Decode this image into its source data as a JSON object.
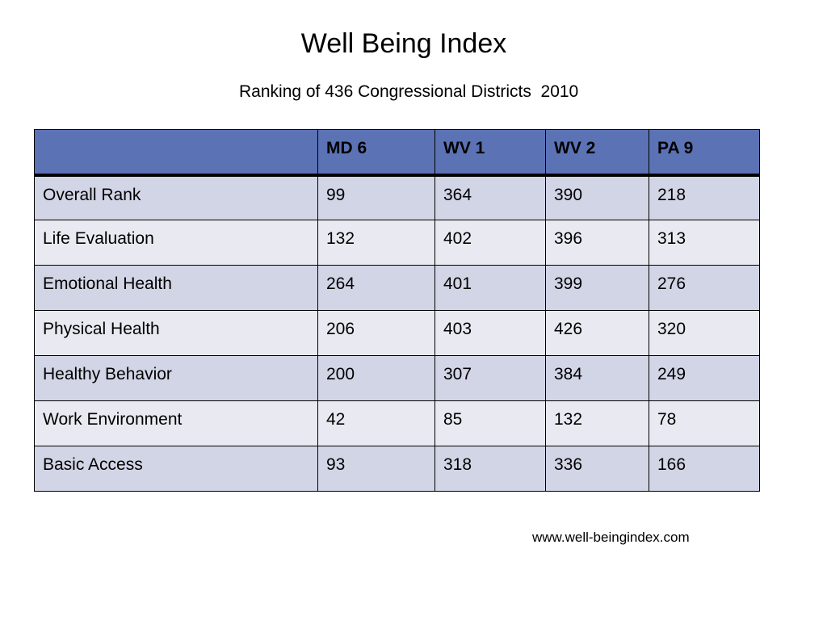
{
  "title": "Well Being Index",
  "subtitle": "Ranking of 436 Congressional Districts  2010",
  "table": {
    "headers": [
      "",
      "MD 6",
      "WV 1",
      "WV 2",
      "PA 9"
    ],
    "rows": [
      [
        "Overall Rank",
        "99",
        "364",
        "390",
        "218"
      ],
      [
        "Life Evaluation",
        "132",
        "402",
        "396",
        "313"
      ],
      [
        "Emotional Health",
        "264",
        "401",
        "399",
        "276"
      ],
      [
        "Physical Health",
        "206",
        "403",
        "426",
        "320"
      ],
      [
        "Healthy Behavior",
        "200",
        "307",
        "384",
        "249"
      ],
      [
        "Work Environment",
        "42",
        "85",
        "132",
        "78"
      ],
      [
        "Basic Access",
        "93",
        "318",
        "336",
        "166"
      ]
    ]
  },
  "source": "www.well-beingindex.com",
  "colors": {
    "header_fill": "#5b73b5",
    "row_band_dark": "#d2d5e6",
    "row_band_light": "#e9eaf1"
  }
}
